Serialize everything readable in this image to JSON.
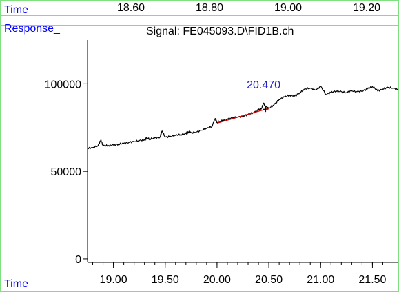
{
  "labels": {
    "top_time": "Time",
    "response": "Response_",
    "bottom_time": "Time",
    "signal": "Signal: FE045093.D\\FID1B.ch"
  },
  "top_axis_ticks": [
    "18.60",
    "18.80",
    "19.00",
    "19.20"
  ],
  "colors": {
    "axis_label_blue": "#0000ff",
    "frame_green": "#7fe07f",
    "trace": "#000000",
    "baseline_fit": "#d00000",
    "peak_label": "#2222cc"
  },
  "chart_data": {
    "type": "line",
    "title": "Signal: FE045093.D\\FID1B.ch",
    "xlabel": "Time",
    "ylabel": "Response_",
    "xlim": [
      18.75,
      21.75
    ],
    "ylim": [
      -2000,
      125000
    ],
    "x_ticks": [
      19.0,
      19.5,
      20.0,
      20.5,
      21.0,
      21.5
    ],
    "x_tick_labels": [
      "19.00",
      "19.50",
      "20.00",
      "20.50",
      "21.00",
      "21.50"
    ],
    "y_ticks": [
      0,
      50000,
      100000
    ],
    "y_tick_labels": [
      "0",
      "50000",
      "100000"
    ],
    "grid": false,
    "series": [
      {
        "x": [
          18.75,
          18.8,
          18.85,
          18.88,
          18.9,
          18.95,
          19.0,
          19.05,
          19.1,
          19.15,
          19.2,
          19.25,
          19.3,
          19.32,
          19.35,
          19.4,
          19.45,
          19.47,
          19.5,
          19.55,
          19.6,
          19.65,
          19.7,
          19.72,
          19.75,
          19.8,
          19.85,
          19.9,
          19.95,
          19.98,
          20.0,
          20.05,
          20.1,
          20.15,
          20.2,
          20.25,
          20.3,
          20.35,
          20.4,
          20.43,
          20.45,
          20.47,
          20.5,
          20.55,
          20.6,
          20.65,
          20.7,
          20.75,
          20.8,
          20.85,
          20.9,
          20.95,
          21.0,
          21.05,
          21.1,
          21.15,
          21.2,
          21.25,
          21.3,
          21.35,
          21.4,
          21.45,
          21.5,
          21.55,
          21.6,
          21.65,
          21.7,
          21.75
        ],
        "y": [
          63000,
          63500,
          64500,
          68000,
          64500,
          64800,
          65000,
          65500,
          66000,
          66500,
          67000,
          67500,
          68000,
          69000,
          68500,
          69000,
          69500,
          73000,
          69500,
          70000,
          70500,
          71000,
          71500,
          72500,
          72000,
          72500,
          73500,
          74500,
          75500,
          80000,
          78000,
          79000,
          80000,
          80500,
          81000,
          81500,
          82500,
          83500,
          85000,
          86000,
          89000,
          87000,
          86000,
          88000,
          91000,
          92500,
          93500,
          93000,
          95000,
          97000,
          97500,
          96500,
          98500,
          94000,
          95000,
          96000,
          95500,
          95000,
          96000,
          95500,
          96000,
          97000,
          98500,
          96000,
          97000,
          98000,
          97500,
          96500
        ]
      }
    ],
    "baseline_fit": {
      "x": [
        20.0,
        20.5
      ],
      "y": [
        77500,
        86000
      ]
    },
    "annotation": {
      "text": "20.470",
      "x": 20.47
    }
  }
}
